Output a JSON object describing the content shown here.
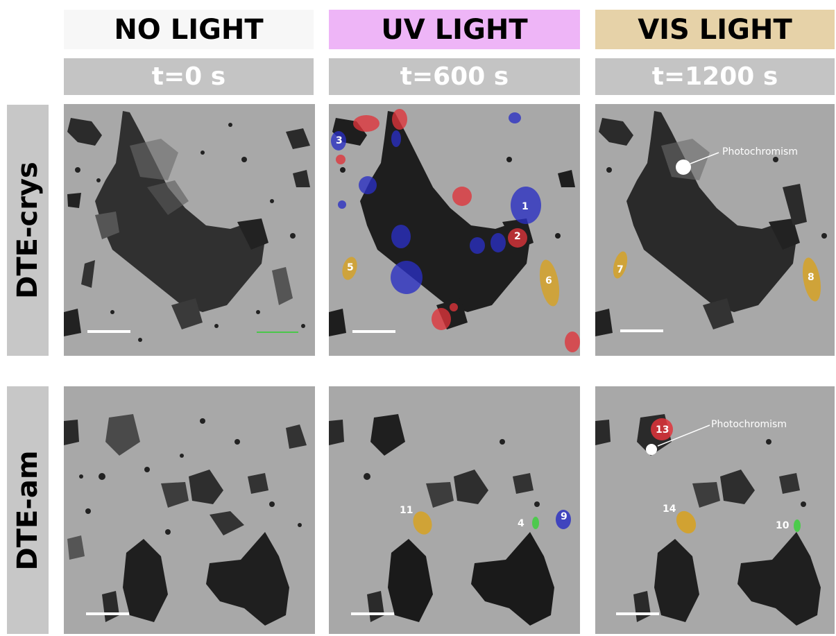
{
  "columns": [
    {
      "title": "NO LIGHT",
      "time": "t=0 s",
      "bg": "#f7f7f7"
    },
    {
      "title": "UV LIGHT",
      "time": "t=600 s",
      "bg": "#eeb5f7"
    },
    {
      "title": "VIS LIGHT",
      "time": "t=1200 s",
      "bg": "#e6d2a8"
    }
  ],
  "rows": [
    {
      "label": "DTE-crys"
    },
    {
      "label": "DTE-am"
    }
  ],
  "markers": {
    "n1": "1",
    "n2": "2",
    "n3": "3",
    "n4": "4",
    "n5": "5",
    "n6": "6",
    "n7": "7",
    "n8": "8",
    "n9": "9",
    "n10": "10",
    "n11": "11",
    "n13": "13",
    "n14": "14"
  },
  "annotations": {
    "photochromism": "Photochromism"
  },
  "colors": {
    "red": "#e0343b",
    "blue": "#2a2fc4",
    "yellow": "#d9a21e",
    "green": "#3bd13b",
    "panel": "#a9a9a9",
    "particle": "#262626"
  }
}
